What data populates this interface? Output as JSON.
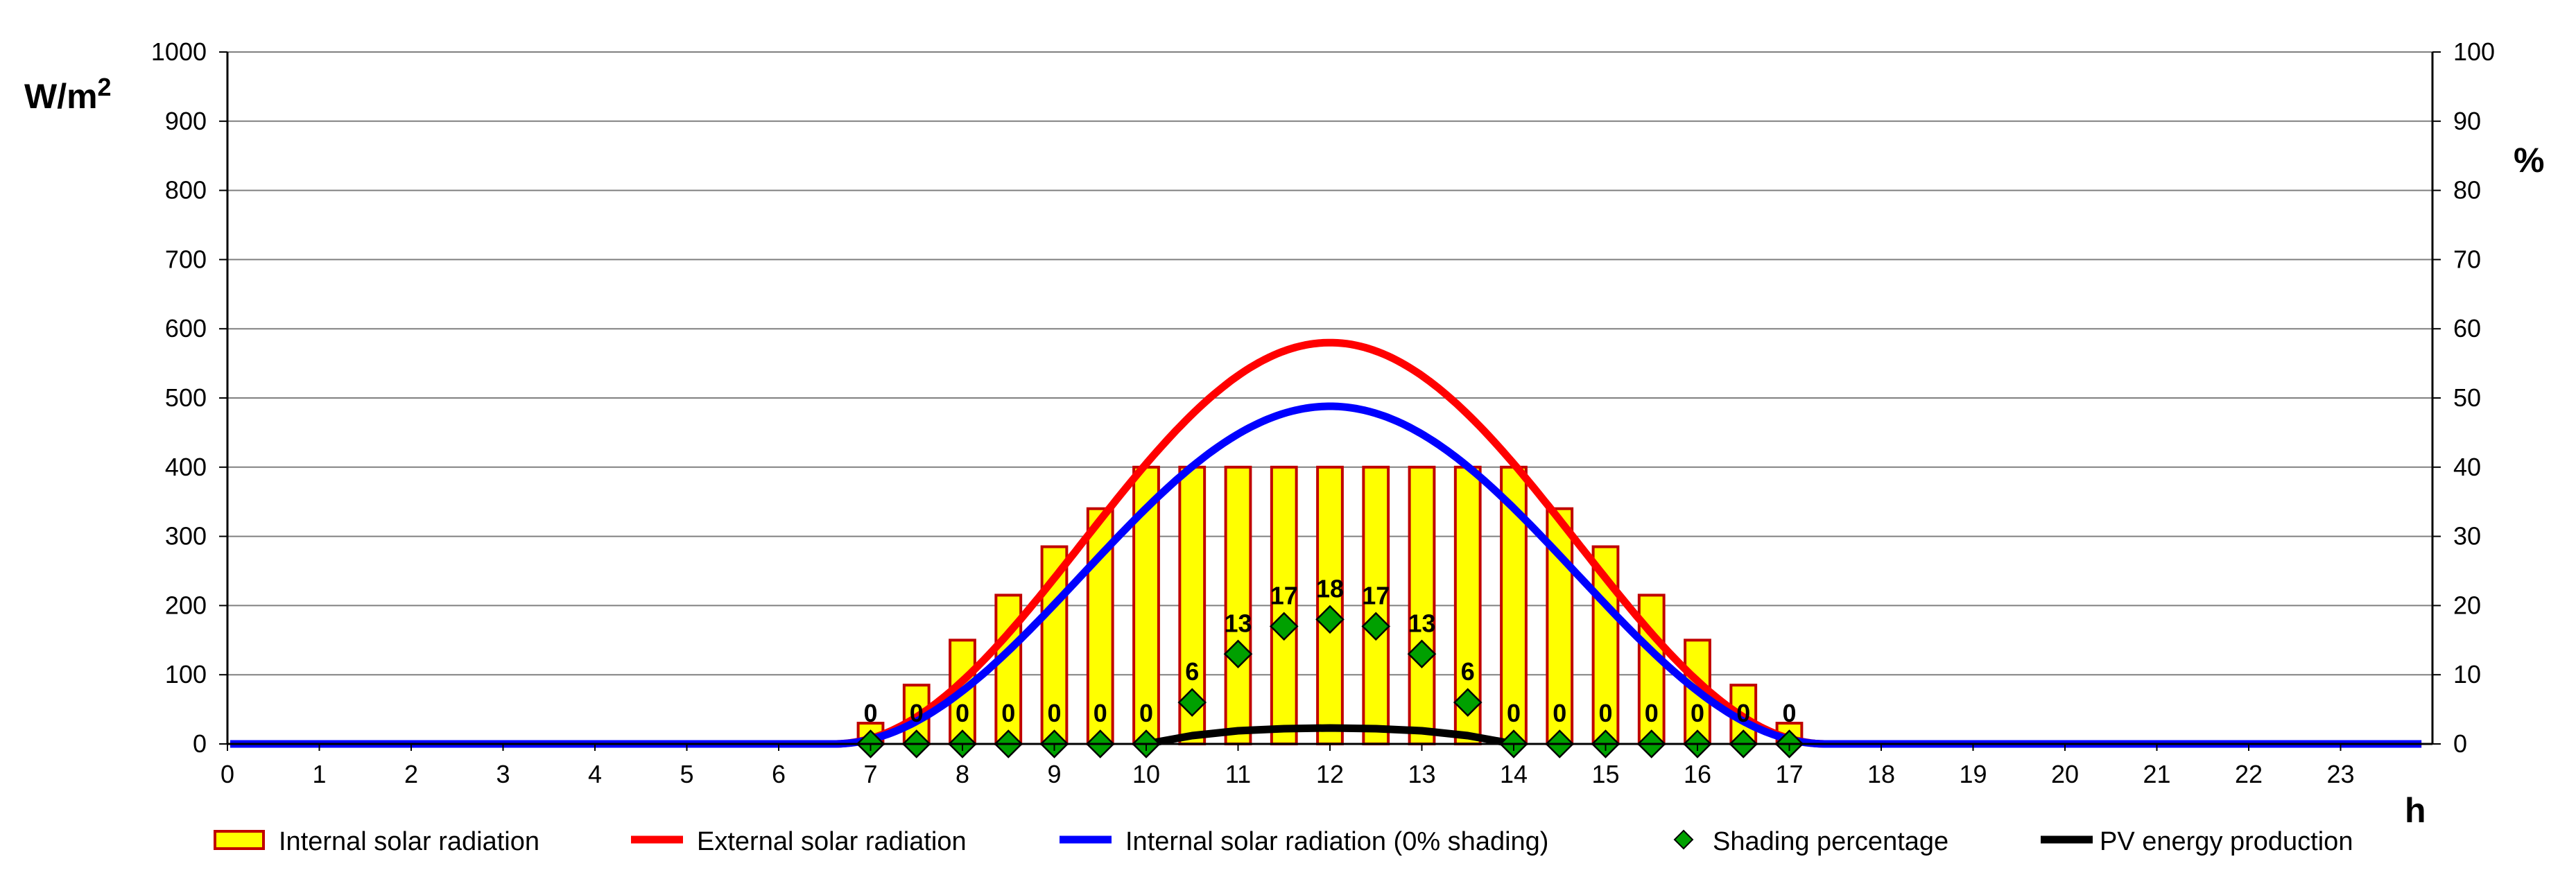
{
  "chart_data": {
    "type": "bar",
    "title": "",
    "xlabel": "h",
    "ylabel": "W/m²",
    "y2label": "%",
    "xlim": [
      0,
      24
    ],
    "ylim": [
      0,
      1000
    ],
    "y2lim": [
      0,
      100
    ],
    "x_ticks": [
      "0",
      "1",
      "2",
      "3",
      "4",
      "5",
      "6",
      "7",
      "8",
      "9",
      "10",
      "11",
      "12",
      "13",
      "14",
      "15",
      "16",
      "17",
      "18",
      "19",
      "20",
      "21",
      "22",
      "23"
    ],
    "y_ticks": [
      "0",
      "100",
      "200",
      "300",
      "400",
      "500",
      "600",
      "700",
      "800",
      "900",
      "1000"
    ],
    "y2_ticks": [
      "0",
      "10",
      "20",
      "30",
      "40",
      "50",
      "60",
      "70",
      "80",
      "90",
      "100"
    ],
    "grid": true,
    "legend_position": "bottom",
    "colors": {
      "bar_fill": "#ffff00",
      "bar_stroke": "#c00000",
      "external": "#ff0000",
      "internal_unshaded": "#0000ff",
      "shading_marker": "#00a000",
      "pv": "#000000",
      "grid": "#808080"
    },
    "series": [
      {
        "name": "Internal solar radiation",
        "type": "bar",
        "axis": "left",
        "x": [
          7,
          7.5,
          8,
          8.5,
          9,
          9.5,
          10,
          10.5,
          11,
          11.5,
          12,
          12.5,
          13,
          13.5,
          14,
          14.5,
          15,
          15.5,
          16,
          16.5,
          17
        ],
        "values": [
          30,
          85,
          150,
          215,
          285,
          340,
          400,
          400,
          400,
          400,
          400,
          400,
          400,
          400,
          400,
          340,
          285,
          215,
          150,
          85,
          30
        ]
      },
      {
        "name": "External solar radiation",
        "type": "line",
        "axis": "left",
        "daylight": [
          6.6,
          17.4
        ],
        "peak_x": 12,
        "peak": 580
      },
      {
        "name": "Internal solar radiation (0% shading)",
        "type": "line",
        "axis": "left",
        "daylight": [
          6.6,
          17.4
        ],
        "peak_x": 12,
        "peak": 488
      },
      {
        "name": "Shading percentage",
        "type": "scatter",
        "axis": "right",
        "x": [
          7,
          7.5,
          8,
          8.5,
          9,
          9.5,
          10,
          10.5,
          11,
          11.5,
          12,
          12.5,
          13,
          13.5,
          14,
          14.5,
          15,
          15.5,
          16,
          16.5,
          17
        ],
        "values": [
          0,
          0,
          0,
          0,
          0,
          0,
          0,
          6,
          13,
          17,
          18,
          17,
          13,
          6,
          0,
          0,
          0,
          0,
          0,
          0,
          0
        ],
        "labels": [
          "0",
          "0",
          "0",
          "0",
          "0",
          "0",
          "0",
          "6",
          "13",
          "17",
          "18",
          "17",
          "13",
          "6",
          "0",
          "0",
          "0",
          "0",
          "0",
          "0",
          "0"
        ]
      },
      {
        "name": "PV energy production",
        "type": "line",
        "axis": "left",
        "x": [
          10,
          10.25,
          10.5,
          11,
          11.5,
          12,
          12.5,
          13,
          13.5,
          13.75,
          14
        ],
        "values": [
          0,
          6,
          12,
          19,
          22,
          23,
          22,
          19,
          12,
          6,
          0
        ]
      }
    ]
  }
}
